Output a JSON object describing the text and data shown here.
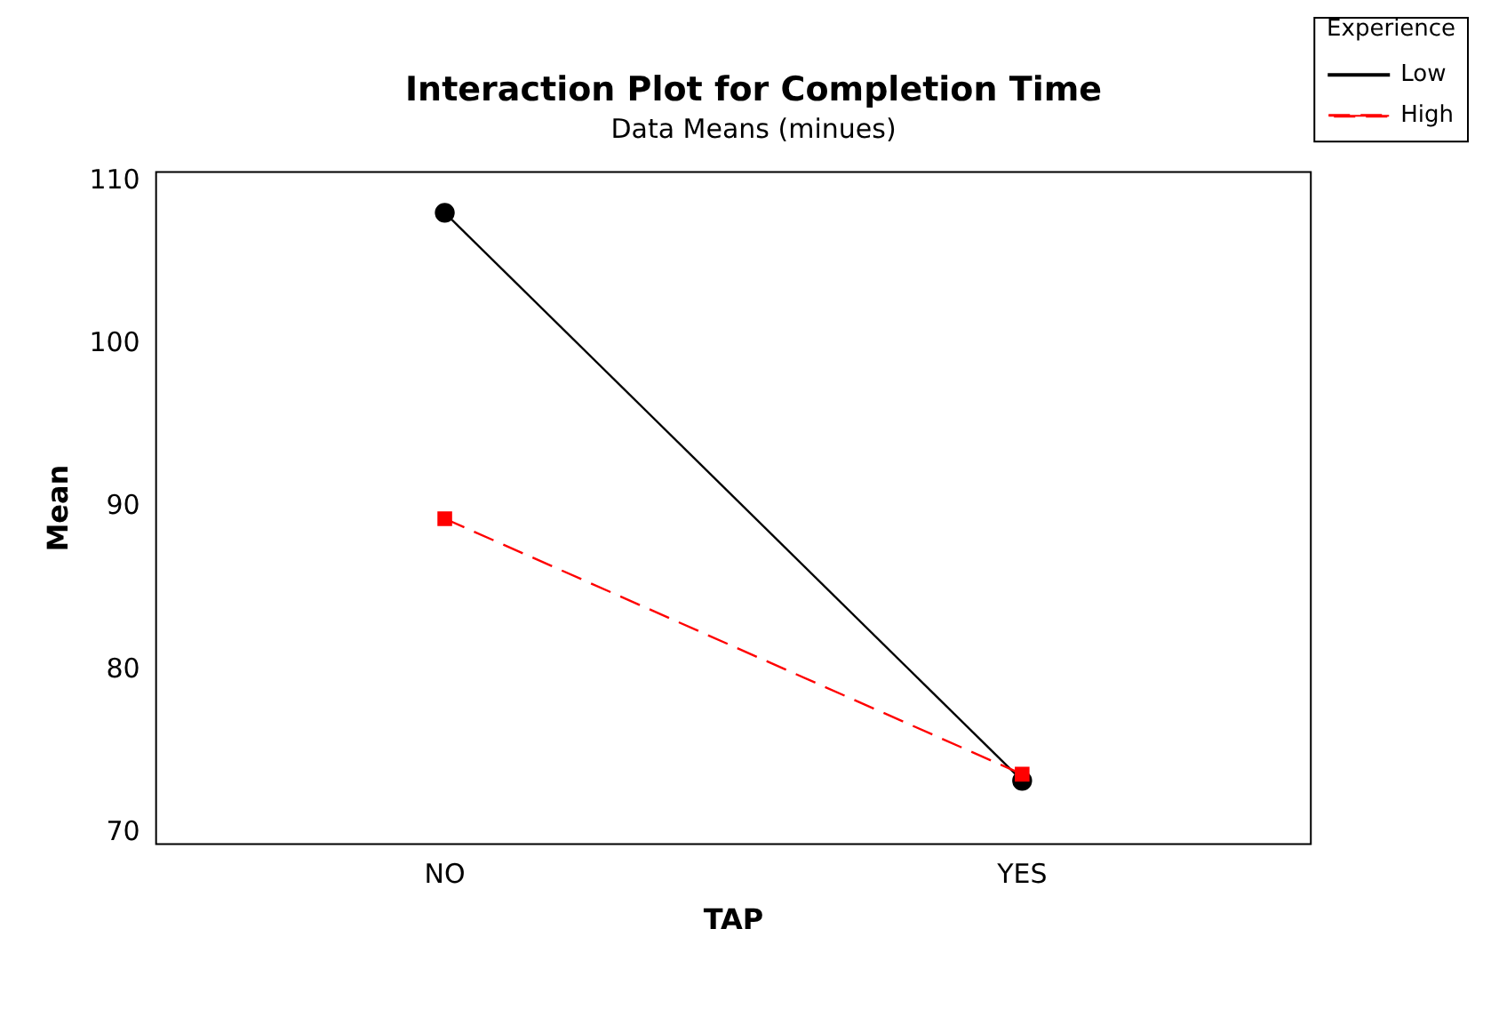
{
  "chart_data": {
    "type": "line",
    "title": "Interaction Plot for Completion Time",
    "subtitle": "Data Means (minues)",
    "xlabel": "TAP",
    "ylabel": "Mean",
    "legend_title": "Experience",
    "categories": [
      "NO",
      "YES"
    ],
    "series": [
      {
        "name": "Low",
        "color": "#000000",
        "values": [
          108.1,
          73.2
        ],
        "marker": "circle",
        "line_style": "solid"
      },
      {
        "name": "High",
        "color": "#ff0000",
        "values": [
          89.3,
          73.6
        ],
        "marker": "square",
        "line_style": "dashed"
      }
    ],
    "ylim": [
      69.3,
      110.6
    ],
    "yticks": [
      70,
      80,
      90,
      100,
      110
    ],
    "grid": false,
    "legend": "top right"
  }
}
